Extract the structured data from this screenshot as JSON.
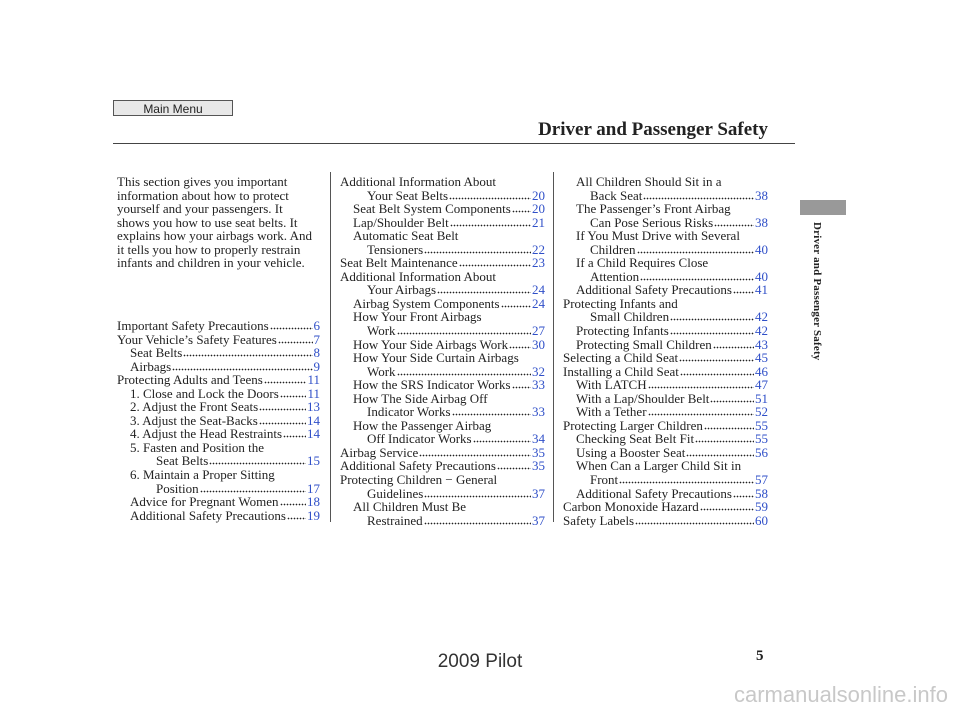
{
  "header": {
    "menu_button": "Main Menu",
    "title": "Driver and Passenger Safety"
  },
  "side_tab": "Driver and Passenger Safety",
  "columns": [
    {
      "intro": [
        "This section gives you important",
        "information about how to protect",
        "yourself and your passengers. It",
        "shows you how to use seat belts. It",
        "explains how your airbags work. And",
        "it tells you how to properly restrain",
        "infants and children in your vehicle."
      ],
      "sections": [
        {
          "heading": {
            "text": [
              "Important Safety Precautions"
            ],
            "page": 6
          },
          "items": []
        },
        {
          "heading": {
            "text": [
              "Your Vehicle’s Safety Features"
            ],
            "page": 7
          },
          "items": [
            {
              "text": [
                "Seat Belts"
              ],
              "page": 8
            },
            {
              "text": [
                "Airbags"
              ],
              "page": 9
            }
          ]
        },
        {
          "heading": {
            "text": [
              "Protecting Adults and Teens"
            ],
            "page": 11
          },
          "items": [
            {
              "text": [
                "1. Close and Lock the Doors"
              ],
              "page": 11
            },
            {
              "text": [
                "2. Adjust the Front Seats"
              ],
              "page": 13
            },
            {
              "text": [
                "3. Adjust the Seat-Backs"
              ],
              "page": 14
            },
            {
              "text": [
                "4. Adjust the Head Restraints"
              ],
              "page": 14
            },
            {
              "text": [
                "5. Fasten and Position the",
                "Seat Belts"
              ],
              "page": 15
            },
            {
              "text": [
                "6. Maintain a Proper Sitting",
                "Position"
              ],
              "page": 17
            },
            {
              "text": [
                "Advice for Pregnant Women"
              ],
              "page": 18
            },
            {
              "text": [
                "Additional Safety Precautions"
              ],
              "page": 19
            }
          ]
        }
      ]
    },
    {
      "sections": [
        {
          "heading": {
            "text": [
              "Additional Information About",
              "Your Seat Belts"
            ],
            "page": 20
          },
          "items": [
            {
              "text": [
                "Seat Belt System Components"
              ],
              "page": 20
            },
            {
              "text": [
                "Lap/Shoulder Belt"
              ],
              "page": 21
            },
            {
              "text": [
                "Automatic Seat Belt",
                "Tensioners"
              ],
              "page": 22
            }
          ]
        },
        {
          "heading": {
            "text": [
              "Seat Belt Maintenance"
            ],
            "page": 23
          },
          "items": []
        },
        {
          "heading": {
            "text": [
              "Additional Information About",
              "Your Airbags"
            ],
            "page": 24
          },
          "items": [
            {
              "text": [
                "Airbag System Components"
              ],
              "page": 24
            },
            {
              "text": [
                "How Your Front Airbags",
                "Work"
              ],
              "page": 27
            },
            {
              "text": [
                "How Your Side Airbags Work"
              ],
              "page": 30
            },
            {
              "text": [
                "How Your Side Curtain Airbags",
                "Work"
              ],
              "page": 32
            },
            {
              "text": [
                "How the SRS Indicator Works"
              ],
              "page": 33
            },
            {
              "text": [
                "How The Side Airbag Off",
                "Indicator Works"
              ],
              "page": 33
            },
            {
              "text": [
                "How the Passenger Airbag",
                "Off Indicator Works"
              ],
              "page": 34
            }
          ]
        },
        {
          "heading": {
            "text": [
              "Airbag Service"
            ],
            "page": 35
          },
          "items": []
        },
        {
          "heading": {
            "text": [
              "Additional Safety Precautions"
            ],
            "page": 35
          },
          "items": []
        },
        {
          "heading": {
            "text": [
              "Protecting Children − General",
              "Guidelines"
            ],
            "page": 37
          },
          "items": [
            {
              "text": [
                "All Children Must Be",
                "Restrained"
              ],
              "page": 37
            }
          ]
        }
      ]
    },
    {
      "sections": [
        {
          "items": [
            {
              "text": [
                "All Children Should Sit in a",
                "Back Seat"
              ],
              "page": 38
            },
            {
              "text": [
                "The Passenger’s Front Airbag",
                "Can Pose Serious Risks"
              ],
              "page": 38
            },
            {
              "text": [
                "If You Must Drive with Several",
                "Children"
              ],
              "page": 40
            },
            {
              "text": [
                "If a Child Requires Close",
                "Attention"
              ],
              "page": 40
            },
            {
              "text": [
                "Additional Safety Precautions"
              ],
              "page": 41
            }
          ]
        },
        {
          "heading": {
            "text": [
              "Protecting Infants and",
              "Small Children"
            ],
            "page": 42
          },
          "items": [
            {
              "text": [
                "Protecting Infants"
              ],
              "page": 42
            },
            {
              "text": [
                "Protecting Small Children"
              ],
              "page": 43
            }
          ]
        },
        {
          "heading": {
            "text": [
              "Selecting a Child Seat"
            ],
            "page": 45
          },
          "items": []
        },
        {
          "heading": {
            "text": [
              "Installing a Child Seat"
            ],
            "page": 46
          },
          "items": [
            {
              "text": [
                "With LATCH"
              ],
              "page": 47
            },
            {
              "text": [
                "With a Lap/Shoulder Belt"
              ],
              "page": 51
            },
            {
              "text": [
                "With a Tether"
              ],
              "page": 52
            }
          ]
        },
        {
          "heading": {
            "text": [
              "Protecting Larger Children"
            ],
            "page": 55
          },
          "items": [
            {
              "text": [
                "Checking Seat Belt Fit"
              ],
              "page": 55
            },
            {
              "text": [
                "Using a Booster Seat"
              ],
              "page": 56
            },
            {
              "text": [
                "When Can a Larger Child Sit in",
                "Front"
              ],
              "page": 57
            },
            {
              "text": [
                "Additional Safety Precautions"
              ],
              "page": 58
            }
          ]
        },
        {
          "heading": {
            "text": [
              "Carbon Monoxide Hazard"
            ],
            "page": 59
          },
          "items": []
        },
        {
          "heading": {
            "text": [
              "Safety Labels"
            ],
            "page": 60
          },
          "items": []
        }
      ]
    }
  ],
  "footer": {
    "page_number": 5,
    "model": "2009 Pilot",
    "watermark": "carmanualsonline.info"
  }
}
